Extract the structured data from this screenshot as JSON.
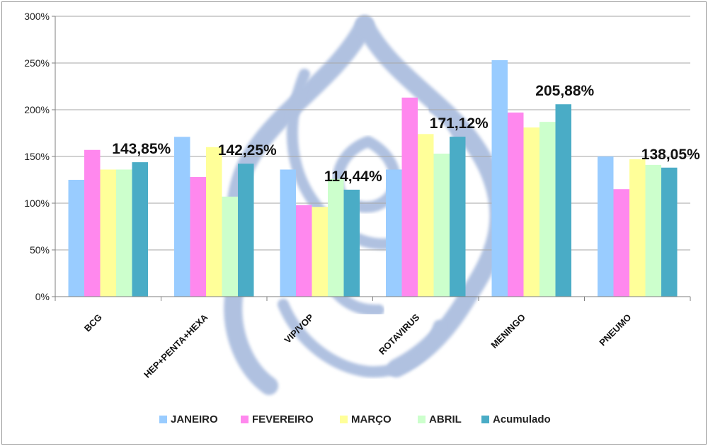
{
  "chart_data": {
    "type": "bar",
    "categories": [
      "BCG",
      "HEP+PENTA+HEXA",
      "VIP/VOP",
      "ROTAVIRUS",
      "MENINGO",
      "PNEUMO"
    ],
    "series": [
      {
        "name": "JANEIRO",
        "color": "#99ccff",
        "values": [
          125,
          171,
          136,
          136,
          253,
          150
        ]
      },
      {
        "name": "FEVEREIRO",
        "color": "#ff88ee",
        "values": [
          157,
          128,
          98,
          213,
          197,
          115
        ]
      },
      {
        "name": "MARÇO",
        "color": "#ffff99",
        "values": [
          136,
          160,
          96,
          174,
          181,
          147
        ]
      },
      {
        "name": "ABRIL",
        "color": "#ccffcc",
        "values": [
          136,
          107,
          126,
          153,
          187,
          141
        ]
      },
      {
        "name": "Acumulado",
        "color": "#4aacc6",
        "values": [
          143.85,
          142.25,
          114.44,
          171.12,
          205.88,
          138.05
        ]
      }
    ],
    "data_labels": [
      "143,85%",
      "142,25%",
      "114,44%",
      "171,12%",
      "205,88%",
      "138,05%"
    ],
    "y_ticks": [
      "0%",
      "50%",
      "100%",
      "150%",
      "200%",
      "250%",
      "300%"
    ],
    "ylim": [
      0,
      300
    ],
    "grid": true,
    "legend": "bottom",
    "watermark": "drop-and-child-logo"
  }
}
